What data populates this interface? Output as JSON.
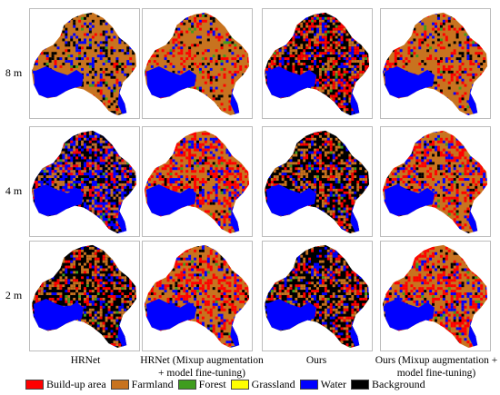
{
  "rows": [
    {
      "label": "8 m"
    },
    {
      "label": "4 m"
    },
    {
      "label": "2 m"
    }
  ],
  "columns": [
    {
      "title_line1": "HRNet",
      "title_line2": ""
    },
    {
      "title_line1": "HRNet (Mixup augmentation",
      "title_line2": "+ model fine-tuning)"
    },
    {
      "title_line1": "Ours",
      "title_line2": ""
    },
    {
      "title_line1": "Ours (Mixup augmentation +",
      "title_line2": "model fine-tuning)"
    }
  ],
  "legend": [
    {
      "label": "Build-up area",
      "color": "#ff0000",
      "icon": "red-swatch"
    },
    {
      "label": "Farmland",
      "color": "#c8731f",
      "icon": "orange-swatch"
    },
    {
      "label": "Forest",
      "color": "#3f9d1e",
      "icon": "green-swatch"
    },
    {
      "label": "Grassland",
      "color": "#ffff00",
      "icon": "yellow-swatch"
    },
    {
      "label": "Water",
      "color": "#0000ff",
      "icon": "blue-swatch"
    },
    {
      "label": "Background",
      "color": "#000000",
      "icon": "black-swatch"
    }
  ],
  "panel_mix": [
    {
      "row": "8 m",
      "column": "HRNet",
      "dominant": "Farmland",
      "water": "high",
      "build_up": "low",
      "background": "medium"
    },
    {
      "row": "8 m",
      "column": "HRNet (Mixup augmentation + model fine-tuning)",
      "dominant": "Farmland",
      "water": "medium",
      "build_up": "medium",
      "background": "low"
    },
    {
      "row": "8 m",
      "column": "Ours",
      "dominant": "Background",
      "water": "high",
      "build_up": "high",
      "background": "high"
    },
    {
      "row": "8 m",
      "column": "Ours (Mixup augmentation + model fine-tuning)",
      "dominant": "Farmland",
      "water": "medium",
      "build_up": "medium",
      "background": "low"
    },
    {
      "row": "4 m",
      "column": "HRNet",
      "dominant": "Water",
      "water": "high",
      "build_up": "medium",
      "background": "high"
    },
    {
      "row": "4 m",
      "column": "HRNet (Mixup augmentation + model fine-tuning)",
      "dominant": "Farmland",
      "water": "high",
      "build_up": "high",
      "background": "low"
    },
    {
      "row": "4 m",
      "column": "Ours",
      "dominant": "Background",
      "water": "high",
      "build_up": "medium",
      "background": "high"
    },
    {
      "row": "4 m",
      "column": "Ours (Mixup augmentation + model fine-tuning)",
      "dominant": "Farmland",
      "water": "high",
      "build_up": "high",
      "background": "low"
    },
    {
      "row": "2 m",
      "column": "HRNet",
      "dominant": "Background",
      "water": "high",
      "build_up": "medium",
      "background": "high"
    },
    {
      "row": "2 m",
      "column": "HRNet (Mixup augmentation + model fine-tuning)",
      "dominant": "Farmland",
      "water": "high",
      "build_up": "high",
      "background": "low"
    },
    {
      "row": "2 m",
      "column": "Ours",
      "dominant": "Background",
      "water": "high",
      "build_up": "medium",
      "background": "high"
    },
    {
      "row": "2 m",
      "column": "Ours (Mixup augmentation + model fine-tuning)",
      "dominant": "Farmland",
      "water": "high",
      "build_up": "high",
      "background": "low"
    }
  ]
}
